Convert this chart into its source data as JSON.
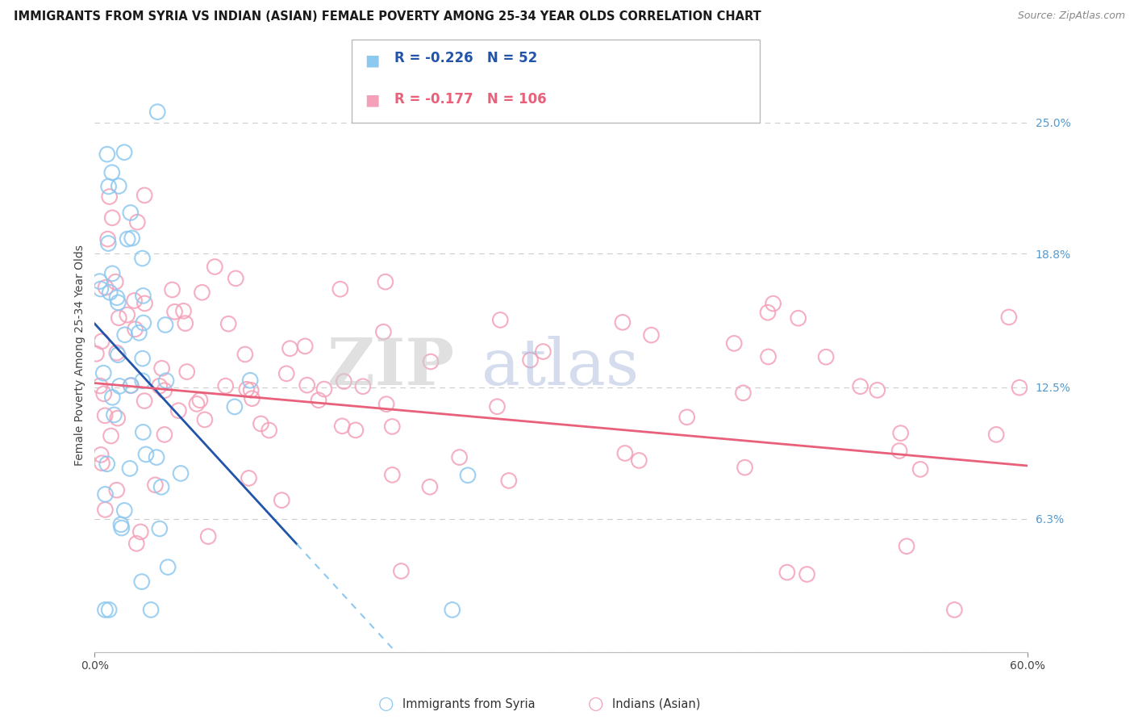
{
  "title": "IMMIGRANTS FROM SYRIA VS INDIAN (ASIAN) FEMALE POVERTY AMONG 25-34 YEAR OLDS CORRELATION CHART",
  "source": "Source: ZipAtlas.com",
  "ylabel": "Female Poverty Among 25-34 Year Olds",
  "ylim": [
    0.0,
    0.28
  ],
  "xlim": [
    0.0,
    0.6
  ],
  "yticks": [
    0.0,
    0.063,
    0.125,
    0.188,
    0.25
  ],
  "ytick_labels": [
    "",
    "6.3%",
    "12.5%",
    "18.8%",
    "25.0%"
  ],
  "syria_R": -0.226,
  "syria_N": 52,
  "india_R": -0.177,
  "india_N": 106,
  "syria_color": "#8DC8F0",
  "india_color": "#F4A0B8",
  "syria_line_color": "#2255AA",
  "india_line_color": "#E8607A",
  "syria_dash_color": "#8DC8F0",
  "background_color": "#FFFFFF",
  "legend_syria_text_color": "#2255AA",
  "legend_india_text_color": "#E8607A",
  "grid_color": "#CCCCCC",
  "title_fontsize": 10.5,
  "source_fontsize": 9,
  "axis_label_fontsize": 10,
  "tick_fontsize": 10,
  "legend_fontsize": 12
}
